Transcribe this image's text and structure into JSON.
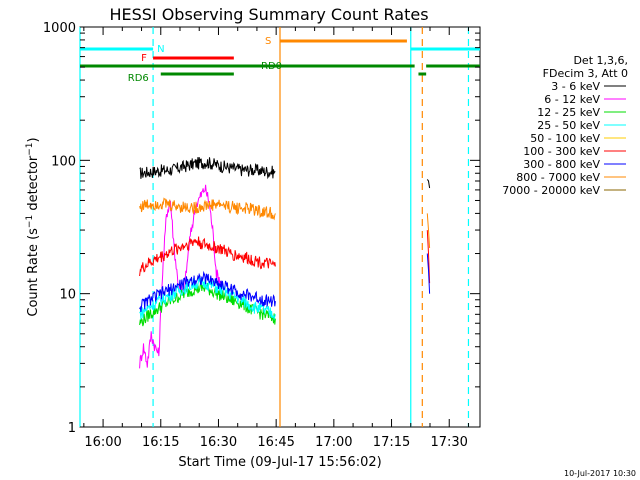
{
  "chart_data": {
    "type": "line",
    "title": "HESSI Observing Summary Count Rates",
    "xlabel": "Start Time (09-Jul-17 15:56:02)",
    "ylabel": "Count Rate (s⁻¹ detector⁻¹)",
    "ylog": true,
    "ylim": [
      1,
      1000
    ],
    "xlim_minutes": [
      -6,
      98
    ],
    "x_ticks": [
      "16:00",
      "16:15",
      "16:30",
      "16:45",
      "17:00",
      "17:15",
      "17:30"
    ],
    "y_ticks": [
      "1",
      "10",
      "100",
      "1000"
    ],
    "legend_header": [
      "Det 1,3,6,",
      "FDecim 3, Att 0"
    ],
    "timestamp": "10-Jul-2017 10:30",
    "series": [
      {
        "name": "3 - 6 keV",
        "color": "#000000",
        "points": [
          [
            9.5,
            80
          ],
          [
            12,
            82
          ],
          [
            15,
            84
          ],
          [
            18,
            85
          ],
          [
            21,
            90
          ],
          [
            24,
            95
          ],
          [
            27,
            97
          ],
          [
            30,
            92
          ],
          [
            33,
            88
          ],
          [
            36,
            85
          ],
          [
            39,
            85
          ],
          [
            42,
            83
          ],
          [
            44.8,
            82
          ]
        ],
        "points2": [
          [
            84.3,
            72
          ],
          [
            84.6,
            70
          ],
          [
            84.9,
            62
          ]
        ]
      },
      {
        "name": "6 - 12 keV",
        "color": "#ff00ff",
        "points": [
          [
            9.5,
            3
          ],
          [
            10.5,
            4
          ],
          [
            11.5,
            3
          ],
          [
            12.5,
            5
          ],
          [
            13.5,
            4
          ],
          [
            14.5,
            3.5
          ],
          [
            15.5,
            15
          ],
          [
            16.5,
            40
          ],
          [
            17.5,
            50
          ],
          [
            18.5,
            22
          ],
          [
            19.5,
            12
          ],
          [
            21,
            10
          ],
          [
            22.5,
            25
          ],
          [
            24,
            45
          ],
          [
            25.5,
            55
          ],
          [
            26.5,
            62
          ],
          [
            27.5,
            50
          ],
          [
            28.5,
            30
          ],
          [
            29.5,
            14
          ],
          [
            31,
            12
          ]
        ]
      },
      {
        "name": "12 - 25 keV",
        "color": "#00dd00",
        "points": [
          [
            9.5,
            6
          ],
          [
            12,
            7
          ],
          [
            15,
            8
          ],
          [
            18,
            9
          ],
          [
            21,
            10
          ],
          [
            24,
            11
          ],
          [
            27,
            11
          ],
          [
            30,
            10
          ],
          [
            33,
            9
          ],
          [
            36,
            8.5
          ],
          [
            39,
            7.5
          ],
          [
            42,
            7
          ],
          [
            44.8,
            6.5
          ]
        ]
      },
      {
        "name": "25 - 50 keV",
        "color": "#00ffff",
        "points": [
          [
            9.5,
            7
          ],
          [
            12,
            8
          ],
          [
            15,
            9
          ],
          [
            18,
            10
          ],
          [
            21,
            11
          ],
          [
            24,
            12
          ],
          [
            27,
            12
          ],
          [
            30,
            11
          ],
          [
            33,
            10
          ],
          [
            36,
            9
          ],
          [
            39,
            8
          ],
          [
            42,
            7.5
          ],
          [
            44.8,
            7
          ]
        ]
      },
      {
        "name": "50 - 100 keV",
        "color": "#ffcc00",
        "points": []
      },
      {
        "name": "100 - 300 keV",
        "color": "#ff0000",
        "points": [
          [
            9.5,
            15
          ],
          [
            12,
            17
          ],
          [
            15,
            19
          ],
          [
            18,
            21
          ],
          [
            21,
            23
          ],
          [
            24,
            25
          ],
          [
            27,
            23
          ],
          [
            30,
            22
          ],
          [
            33,
            20
          ],
          [
            36,
            19
          ],
          [
            39,
            18
          ],
          [
            42,
            17
          ],
          [
            44.8,
            16
          ]
        ],
        "points2": [
          [
            84.3,
            30
          ],
          [
            84.6,
            20
          ],
          [
            84.9,
            12
          ]
        ]
      },
      {
        "name": "300 - 800 keV",
        "color": "#0000ff",
        "points": [
          [
            9.5,
            8
          ],
          [
            12,
            9
          ],
          [
            15,
            10
          ],
          [
            18,
            11
          ],
          [
            21,
            12
          ],
          [
            24,
            13
          ],
          [
            27,
            13
          ],
          [
            30,
            12
          ],
          [
            33,
            11
          ],
          [
            36,
            10
          ],
          [
            39,
            9.5
          ],
          [
            42,
            9
          ],
          [
            44.8,
            8.8
          ]
        ],
        "points2": [
          [
            84.3,
            20
          ],
          [
            84.6,
            15
          ],
          [
            84.9,
            10
          ]
        ]
      },
      {
        "name": "800 - 7000 keV",
        "color": "#ff8800",
        "points": [
          [
            9.5,
            45
          ],
          [
            12,
            47
          ],
          [
            15,
            48
          ],
          [
            18,
            46
          ],
          [
            21,
            45
          ],
          [
            24,
            44
          ],
          [
            27,
            46
          ],
          [
            30,
            47
          ],
          [
            33,
            45
          ],
          [
            36,
            44
          ],
          [
            39,
            43
          ],
          [
            42,
            41
          ],
          [
            44.8,
            40
          ]
        ],
        "points2": [
          [
            84.3,
            40
          ],
          [
            84.6,
            30
          ],
          [
            84.9,
            22
          ]
        ]
      },
      {
        "name": "7000 - 20000 keV",
        "color": "#886600",
        "points": []
      }
    ],
    "flag_bars": [
      {
        "label": "N",
        "color": "#00ffff",
        "segments": [
          [
            -6,
            13
          ]
        ],
        "segments2": [
          [
            80,
            98
          ]
        ],
        "level": 1
      },
      {
        "label": "F",
        "color": "#ff0000",
        "segments": [
          [
            13,
            34
          ]
        ],
        "level": 2
      },
      {
        "label": "RD0",
        "color": "#008800",
        "segments": [
          [
            -6,
            81
          ],
          [
            84,
            98
          ]
        ],
        "level": 3
      },
      {
        "label": "RD6",
        "color": "#008800",
        "segments": [
          [
            15,
            34
          ],
          [
            82,
            84
          ]
        ],
        "level": 4
      },
      {
        "label": "S",
        "color": "#ff8800",
        "segments": [
          [
            46,
            79
          ]
        ],
        "level": 0
      }
    ],
    "vlines": [
      {
        "x": -6,
        "color": "#00ffff",
        "style": "solid"
      },
      {
        "x": 13,
        "color": "#00ffff",
        "style": "dashed"
      },
      {
        "x": 46,
        "color": "#ff8800",
        "style": "solid"
      },
      {
        "x": 80,
        "color": "#00ffff",
        "style": "solid"
      },
      {
        "x": 83,
        "color": "#ff8800",
        "style": "dashed"
      },
      {
        "x": 95,
        "color": "#00ffff",
        "style": "dashed"
      }
    ],
    "grid": false,
    "legend_position": "right"
  }
}
